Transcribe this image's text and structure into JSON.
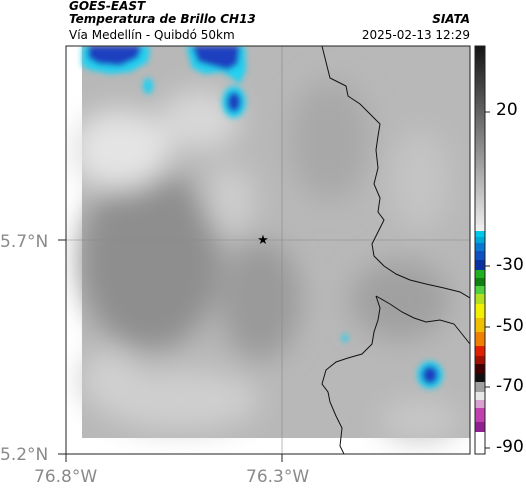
{
  "header": {
    "product": "GOES-EAST",
    "variable": "Temperatura de Brillo CH13",
    "region": "Vía Medellín - Quibdó 50km",
    "institution": "SIATA",
    "timestamp": "2025-02-13 12:29"
  },
  "axes": {
    "lat_ticks": [
      "5.7°N",
      "5.2°N"
    ],
    "lon_ticks": [
      "76.8°W",
      "76.3°W"
    ]
  },
  "colorbar": {
    "tick_labels": [
      "20",
      "-30",
      "-50",
      "-70",
      "-90"
    ],
    "colors": {
      "high": "#1a1a1a",
      "low": "#e8e8e8",
      "cyan": "#00c8e8",
      "blue": "#1050c0",
      "green": "#20b020",
      "yellow": "#f0f000",
      "red": "#e02000",
      "magenta": "#c040b0"
    }
  },
  "map": {
    "marker_icon": "star-icon",
    "background_gray": "#b4b4b4",
    "cloud_cold": "#1a3fc0",
    "cloud_edge": "#20d0f0"
  }
}
